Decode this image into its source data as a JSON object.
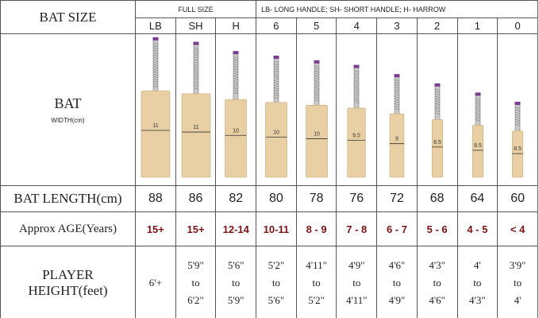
{
  "header": {
    "bat_size": "BAT SIZE",
    "full_size": "FULL SIZE",
    "legend": "LB- LONG HANDLE; SH- SHORT HANDLE; H- HARROW"
  },
  "rows": {
    "bat": "BAT",
    "width": "WIDTH(cm)",
    "length": "BAT LENGTH(cm)",
    "age": "Approx AGE(Years)",
    "height": "PLAYER HEIGHT(feet)"
  },
  "sizes": [
    {
      "size": "LB",
      "width": 11,
      "length": 88,
      "age": "15+",
      "height": [
        "6'+"
      ]
    },
    {
      "size": "SH",
      "width": 11,
      "length": 86,
      "age": "15+",
      "height": [
        "5'9\"",
        "to",
        "6'2\""
      ]
    },
    {
      "size": "H",
      "width": 10,
      "length": 82,
      "age": "12-14",
      "height": [
        "5'6\"",
        "to",
        "5'9\""
      ]
    },
    {
      "size": "6",
      "width": 10,
      "length": 80,
      "age": "10-11",
      "height": [
        "5'2\"",
        "to",
        "5'6\""
      ]
    },
    {
      "size": "5",
      "width": 10,
      "length": 78,
      "age": "8 - 9",
      "height": [
        "4'11\"",
        "to",
        "5'2\""
      ]
    },
    {
      "size": "4",
      "width": 9.5,
      "length": 76,
      "age": "7 - 8",
      "height": [
        "4'9\"",
        "to",
        "4'11\""
      ]
    },
    {
      "size": "3",
      "width": 9,
      "length": 72,
      "age": "6 - 7",
      "height": [
        "4'6\"",
        "to",
        "4'9\""
      ]
    },
    {
      "size": "2",
      "width": 8.5,
      "length": 68,
      "age": "5 - 6",
      "height": [
        "4'3\"",
        "to",
        "4'6\""
      ]
    },
    {
      "size": "1",
      "width": 8.5,
      "length": 64,
      "age": "4 - 5",
      "height": [
        "4'",
        "to",
        "4'3\""
      ]
    },
    {
      "size": "0",
      "width": 8.5,
      "length": 60,
      "age": "< 4",
      "height": [
        "3'9\"",
        "to",
        "4'"
      ]
    }
  ]
}
